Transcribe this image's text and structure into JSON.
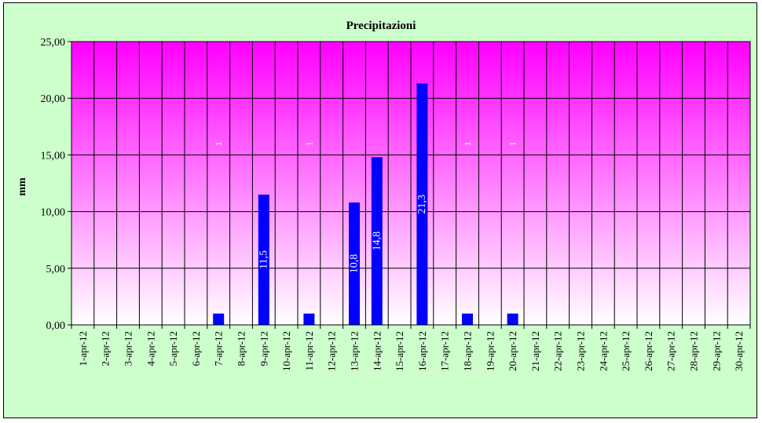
{
  "chart_data": {
    "type": "bar",
    "title": "Precipitazioni",
    "xlabel": "",
    "ylabel": "mm",
    "ylim": [
      0,
      25
    ],
    "yticks": [
      "0,00",
      "5,00",
      "10,00",
      "15,00",
      "20,00",
      "25,00"
    ],
    "grid": true,
    "legend": "none",
    "categories": [
      "1-apr-12",
      "2-apr-12",
      "3-apr-12",
      "4-apr-12",
      "5-apr-12",
      "6-apr-12",
      "7-apr-12",
      "8-apr-12",
      "9-apr-12",
      "10-apr-12",
      "11-apr-12",
      "12-apr-12",
      "13-apr-12",
      "14-apr-12",
      "15-apr-12",
      "16-apr-12",
      "17-apr-12",
      "18-apr-12",
      "19-apr-12",
      "20-apr-12",
      "21-apr-12",
      "22-apr-12",
      "23-apr-12",
      "24-apr-12",
      "25-apr-12",
      "26-apr-12",
      "27-apr-12",
      "28-apr-12",
      "29-apr-12",
      "30-apr-12"
    ],
    "values": [
      0,
      0,
      0,
      0,
      0,
      0,
      1,
      0,
      11.5,
      0,
      1,
      0,
      10.8,
      14.8,
      0,
      21.3,
      0,
      1,
      0,
      1,
      0,
      0,
      0,
      0,
      0,
      0,
      0,
      0,
      0,
      0
    ],
    "data_labels": [
      "",
      "",
      "",
      "",
      "",
      "",
      "1",
      "",
      "11,5",
      "",
      "1",
      "",
      "10,8",
      "14,8",
      "",
      "21,3",
      "",
      "1",
      "",
      "1",
      "",
      "",
      "",
      "",
      "",
      "",
      "",
      "",
      "",
      ""
    ],
    "colors": {
      "bar": "#0000ff",
      "plot_top": "#ff00ff",
      "plot_bottom": "#ffffff",
      "background": "#ccffcc",
      "label": "#ffffff"
    }
  }
}
